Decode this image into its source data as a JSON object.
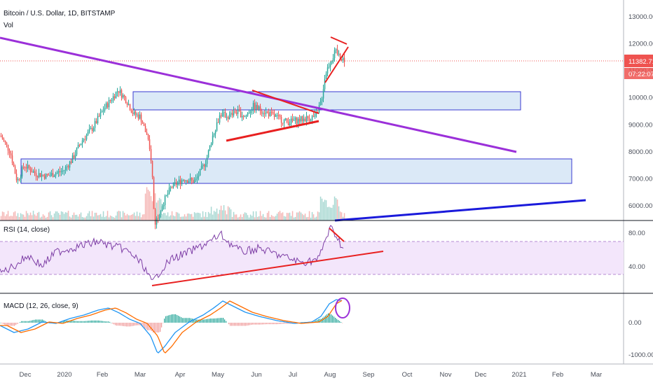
{
  "header": {
    "title": "Bitcoin / U.S. Dollar, 1D, BITSTAMP",
    "vol_label": "Vol"
  },
  "price_tag": {
    "price": "11382.71",
    "countdown": "07:22:07",
    "color": "#ef5350"
  },
  "rsi_panel": {
    "title": "RSI (14, close)",
    "ticks": [
      "80.00",
      "40.00"
    ]
  },
  "macd_panel": {
    "title": "MACD (12, 26, close, 9)",
    "ticks": [
      "0.00",
      "-1000.00"
    ]
  },
  "colors": {
    "bull": "#26a69a",
    "bear": "#ef5350",
    "purple_trend": "#9b30d9",
    "red_line": "#e82020",
    "blue_line": "#1a1adb",
    "zone_fill": "#dbe9f7",
    "zone_border": "#3a3ad0",
    "rsi_line": "#7e3fa6",
    "rsi_band": "#f3e6fb",
    "macd_line": "#2196f3",
    "signal_line": "#ff6d00"
  },
  "chart_data": [
    {
      "type": "candlestick",
      "title": "Bitcoin / U.S. Dollar, 1D, BITSTAMP",
      "x_ticks": [
        "Dec",
        "2020",
        "Feb",
        "Mar",
        "Apr",
        "May",
        "Jun",
        "Jul",
        "Aug",
        "Sep",
        "Oct",
        "Nov",
        "Dec",
        "2021",
        "Feb",
        "Mar"
      ],
      "y_ticks": [
        13000,
        12000,
        11000,
        10000,
        9000,
        8000,
        7000,
        6000
      ],
      "ylim": [
        5500,
        13500
      ],
      "monthly_close_path": [
        {
          "x": "Nov 25",
          "y": 7200
        },
        {
          "x": "Dec 1",
          "y": 7400
        },
        {
          "x": "Dec 15",
          "y": 7100
        },
        {
          "x": "Jan 1",
          "y": 7200
        },
        {
          "x": "Jan 15",
          "y": 8800
        },
        {
          "x": "Feb 1",
          "y": 9400
        },
        {
          "x": "Feb 12",
          "y": 10300
        },
        {
          "x": "Mar 1",
          "y": 8600
        },
        {
          "x": "Mar 12",
          "y": 5000
        },
        {
          "x": "Apr 1",
          "y": 6600
        },
        {
          "x": "Apr 30",
          "y": 8800
        },
        {
          "x": "May 10",
          "y": 9500
        },
        {
          "x": "Jun 1",
          "y": 9600
        },
        {
          "x": "Jul 1",
          "y": 9200
        },
        {
          "x": "Jul 20",
          "y": 9200
        },
        {
          "x": "Jul 28",
          "y": 11100
        },
        {
          "x": "Aug 10",
          "y": 11600
        }
      ],
      "annotations": {
        "resistance_zone_upper": [
          9600,
          10200
        ],
        "support_zone_lower": [
          6850,
          7750
        ],
        "last_price": 11382.71
      }
    },
    {
      "type": "line",
      "title": "RSI (14, close)",
      "y_ticks": [
        80,
        40
      ],
      "band": [
        30,
        70
      ]
    },
    {
      "type": "line",
      "title": "MACD (12, 26, close, 9)",
      "y_ticks": [
        0,
        -1000
      ]
    }
  ]
}
